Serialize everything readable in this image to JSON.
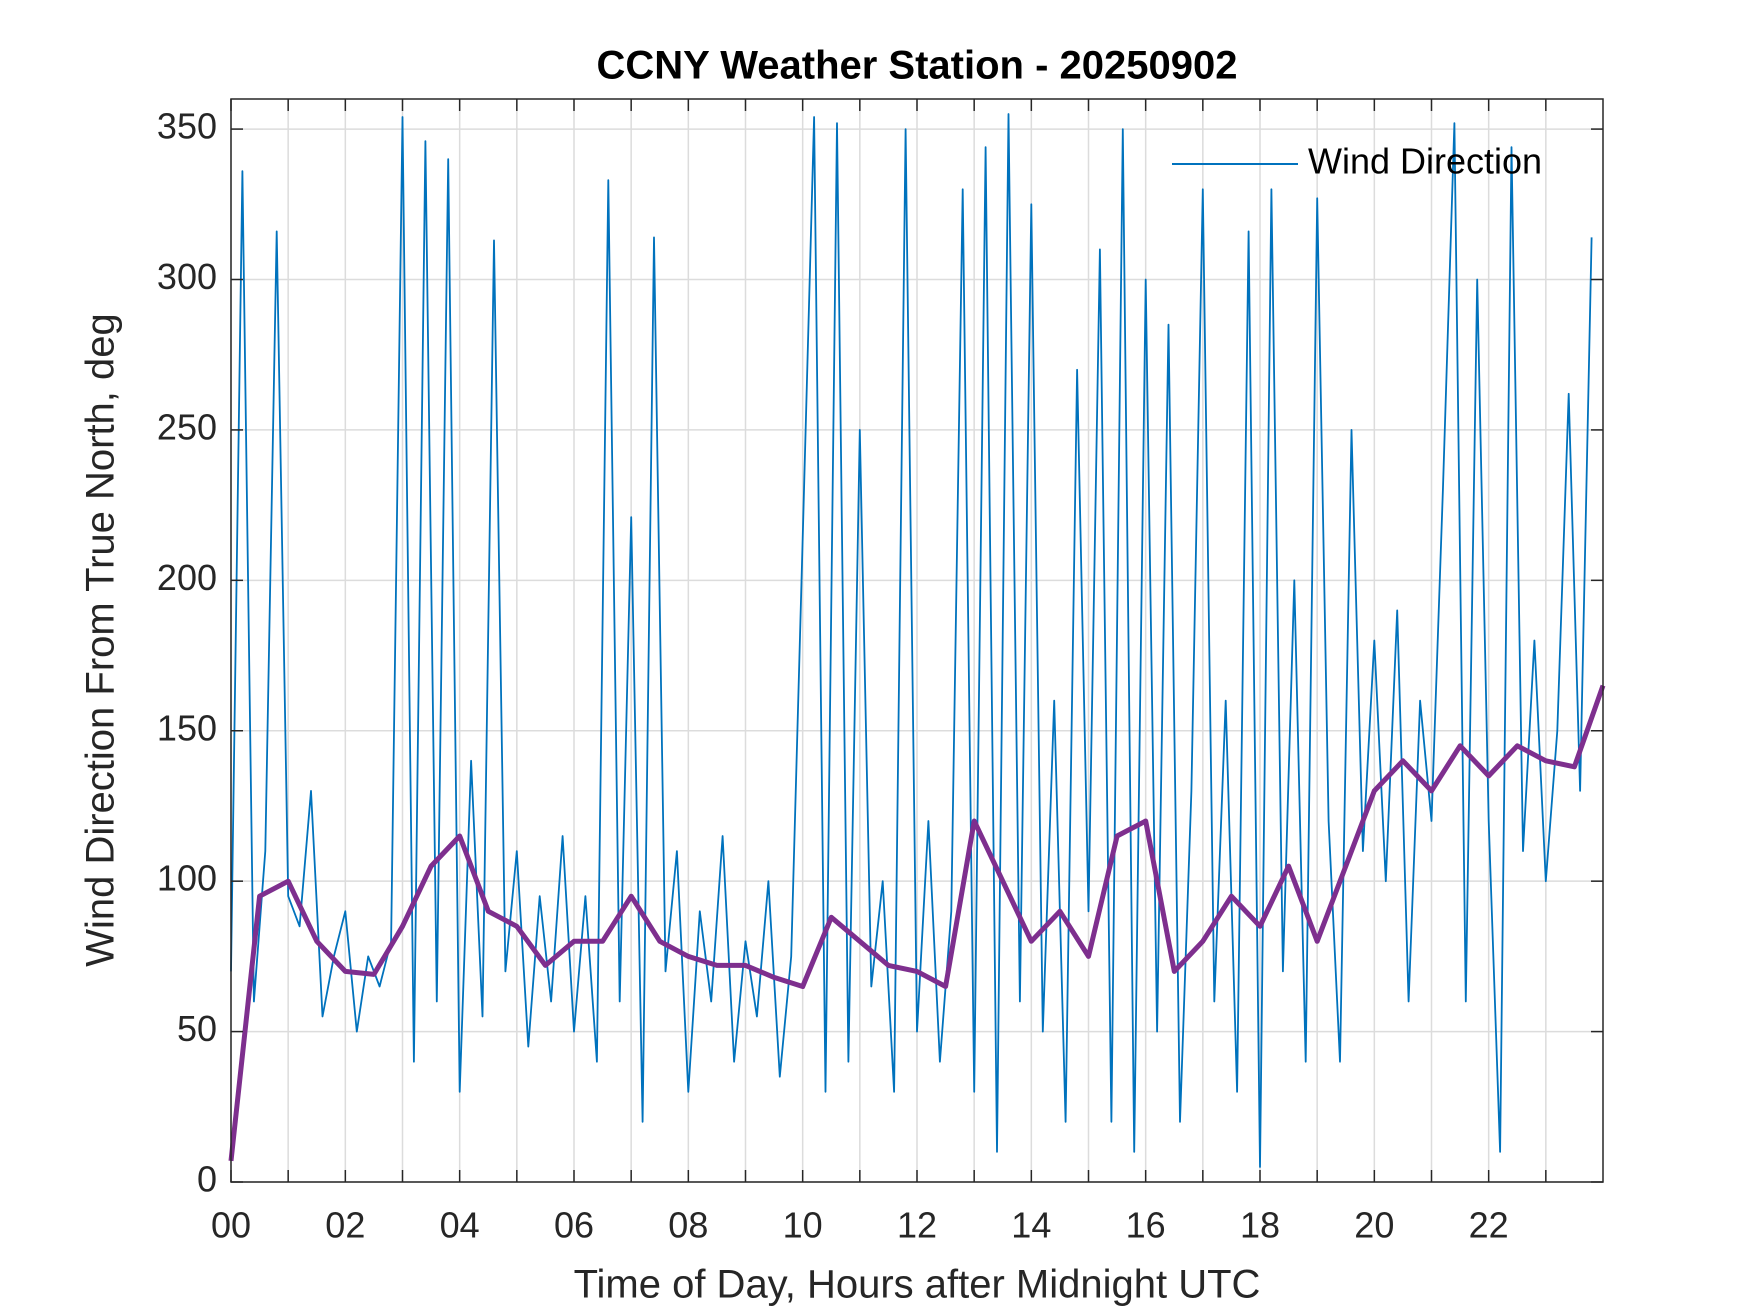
{
  "chart_data": {
    "type": "line",
    "title": "CCNY Weather Station - 20250902",
    "xlabel": "Time of Day, Hours after Midnight UTC",
    "ylabel": "Wind Direction From True North, deg",
    "xlim": [
      0,
      24
    ],
    "ylim": [
      0,
      360
    ],
    "xticks": [
      {
        "value": 0,
        "label": "00"
      },
      {
        "value": 2,
        "label": "02"
      },
      {
        "value": 4,
        "label": "04"
      },
      {
        "value": 6,
        "label": "06"
      },
      {
        "value": 8,
        "label": "08"
      },
      {
        "value": 10,
        "label": "10"
      },
      {
        "value": 12,
        "label": "12"
      },
      {
        "value": 14,
        "label": "14"
      },
      {
        "value": 16,
        "label": "16"
      },
      {
        "value": 18,
        "label": "18"
      },
      {
        "value": 20,
        "label": "20"
      },
      {
        "value": 22,
        "label": "22"
      }
    ],
    "xminorticks": [
      1,
      3,
      5,
      7,
      9,
      11,
      13,
      15,
      17,
      19,
      21,
      23
    ],
    "yticks": [
      0,
      50,
      100,
      150,
      200,
      250,
      300,
      350
    ],
    "grid": true,
    "legend": "upper right",
    "series": [
      {
        "name": "Wind Direction",
        "color": "#0072bd",
        "x": [
          0,
          0.2,
          0.4,
          0.6,
          0.8,
          1,
          1.2,
          1.4,
          1.6,
          1.8,
          2,
          2.2,
          2.4,
          2.6,
          2.8,
          3,
          3.2,
          3.4,
          3.6,
          3.8,
          4,
          4.2,
          4.4,
          4.6,
          4.8,
          5,
          5.2,
          5.4,
          5.6,
          5.8,
          6,
          6.2,
          6.4,
          6.6,
          6.8,
          7,
          7.2,
          7.4,
          7.6,
          7.8,
          8,
          8.2,
          8.4,
          8.6,
          8.8,
          9,
          9.2,
          9.4,
          9.6,
          9.8,
          10,
          10.2,
          10.4,
          10.6,
          10.8,
          11,
          11.2,
          11.4,
          11.6,
          11.8,
          12,
          12.2,
          12.4,
          12.6,
          12.8,
          13,
          13.2,
          13.4,
          13.6,
          13.8,
          14,
          14.2,
          14.4,
          14.6,
          14.8,
          15,
          15.2,
          15.4,
          15.6,
          15.8,
          16,
          16.2,
          16.4,
          16.6,
          16.8,
          17,
          17.2,
          17.4,
          17.6,
          17.8,
          18,
          18.2,
          18.4,
          18.6,
          18.8,
          19,
          19.2,
          19.4,
          19.6,
          19.8,
          20,
          20.2,
          20.4,
          20.6,
          20.8,
          21,
          21.2,
          21.4,
          21.6,
          21.8,
          22,
          22.2,
          22.4,
          22.6,
          22.8,
          23,
          23.2,
          23.4,
          23.6,
          23.8
        ],
        "values": [
          70,
          336,
          60,
          110,
          316,
          95,
          85,
          130,
          55,
          75,
          90,
          50,
          75,
          65,
          80,
          354,
          40,
          346,
          60,
          340,
          30,
          140,
          55,
          313,
          70,
          110,
          45,
          95,
          60,
          115,
          50,
          95,
          40,
          333,
          60,
          221,
          20,
          314,
          70,
          110,
          30,
          90,
          60,
          115,
          40,
          80,
          55,
          100,
          35,
          75,
          214,
          354,
          30,
          352,
          40,
          250,
          65,
          100,
          30,
          350,
          50,
          120,
          40,
          90,
          330,
          30,
          344,
          10,
          355,
          60,
          325,
          50,
          160,
          20,
          270,
          90,
          310,
          20,
          350,
          10,
          300,
          50,
          285,
          20,
          130,
          330,
          60,
          160,
          30,
          316,
          5,
          330,
          70,
          200,
          40,
          327,
          120,
          40,
          250,
          110,
          180,
          100,
          190,
          60,
          160,
          120,
          230,
          352,
          60,
          300,
          120,
          10,
          344,
          110,
          180,
          100,
          150,
          262,
          130,
          314
        ]
      },
      {
        "color": "#7e2f8e",
        "x": [
          0,
          0.5,
          1,
          1.5,
          2,
          2.5,
          3,
          3.5,
          4,
          4.5,
          5,
          5.5,
          6,
          6.5,
          7,
          7.5,
          8,
          8.5,
          9,
          9.5,
          10,
          10.5,
          11,
          11.5,
          12,
          12.5,
          13,
          13.5,
          14,
          14.5,
          15,
          15.5,
          16,
          16.5,
          17,
          17.5,
          18,
          18.5,
          19,
          19.5,
          20,
          20.5,
          21,
          21.5,
          22,
          22.5,
          23,
          23.5,
          24
        ],
        "values": [
          7,
          95,
          100,
          80,
          70,
          69,
          85,
          105,
          115,
          90,
          85,
          72,
          80,
          80,
          95,
          80,
          75,
          72,
          72,
          68,
          65,
          88,
          80,
          72,
          70,
          65,
          120,
          100,
          80,
          90,
          75,
          115,
          120,
          70,
          80,
          95,
          85,
          105,
          80,
          105,
          130,
          140,
          130,
          145,
          135,
          145,
          140,
          138,
          165
        ]
      }
    ]
  }
}
